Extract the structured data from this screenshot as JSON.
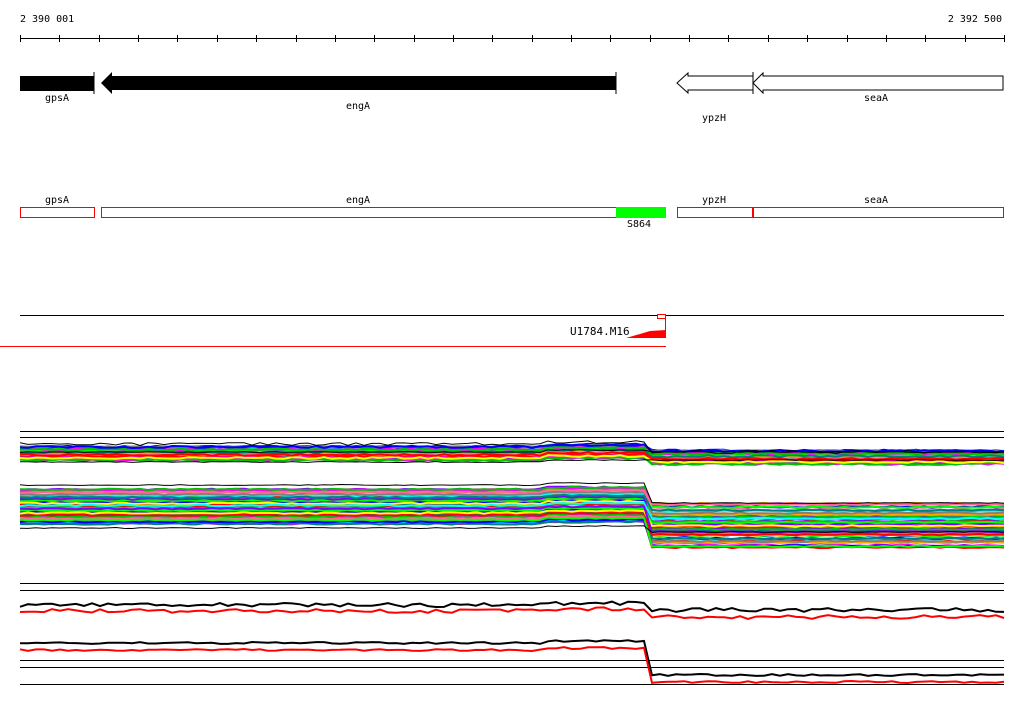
{
  "ruler": {
    "start_label": "2 390 001",
    "end_label": "2 392 500",
    "start": 2390001,
    "end": 2392500
  },
  "genes": [
    {
      "name": "gpsA",
      "strand": "-",
      "fill": "#000000"
    },
    {
      "name": "engA",
      "strand": "-",
      "fill": "#000000"
    },
    {
      "name": "ypzH",
      "strand": "-",
      "fill": "#ffffff"
    },
    {
      "name": "seaA",
      "strand": "-",
      "fill": "#ffffff"
    }
  ],
  "features": {
    "highlight_label": "S864",
    "highlight_color": "#00ff00",
    "outline_color": "#ff0000"
  },
  "probe": {
    "label": "U1784.M16",
    "color": "#ff0000"
  },
  "colors": {
    "accent": "#ff0000",
    "line": "#000000"
  }
}
